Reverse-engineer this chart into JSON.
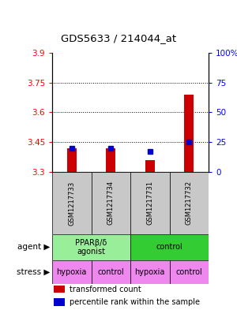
{
  "title": "GDS5633 / 214044_at",
  "samples": [
    "GSM1217733",
    "GSM1217734",
    "GSM1217731",
    "GSM1217732"
  ],
  "red_values": [
    3.42,
    3.42,
    3.36,
    3.69
  ],
  "blue_values": [
    20,
    20,
    17,
    25
  ],
  "ylim_left": [
    3.3,
    3.9
  ],
  "ylim_right": [
    0,
    100
  ],
  "yticks_left": [
    3.3,
    3.45,
    3.6,
    3.75,
    3.9
  ],
  "yticks_right": [
    0,
    25,
    50,
    75,
    100
  ],
  "ytick_labels_left": [
    "3.3",
    "3.45",
    "3.6",
    "3.75",
    "3.9"
  ],
  "ytick_labels_right": [
    "0",
    "25",
    "50",
    "75",
    "100%"
  ],
  "hlines": [
    3.45,
    3.6,
    3.75
  ],
  "agent_label": "agent",
  "stress_label": "stress",
  "legend_red": "transformed count",
  "legend_blue": "percentile rank within the sample",
  "bar_color_red": "#CC0000",
  "bar_color_blue": "#0000CC",
  "sample_box_color": "#C8C8C8",
  "agent_color_light": "#99EE99",
  "agent_color_dark": "#33CC33",
  "stress_color": "#EE88EE",
  "n_samples": 4,
  "fig_width": 3.0,
  "fig_height": 3.93,
  "dpi": 100
}
